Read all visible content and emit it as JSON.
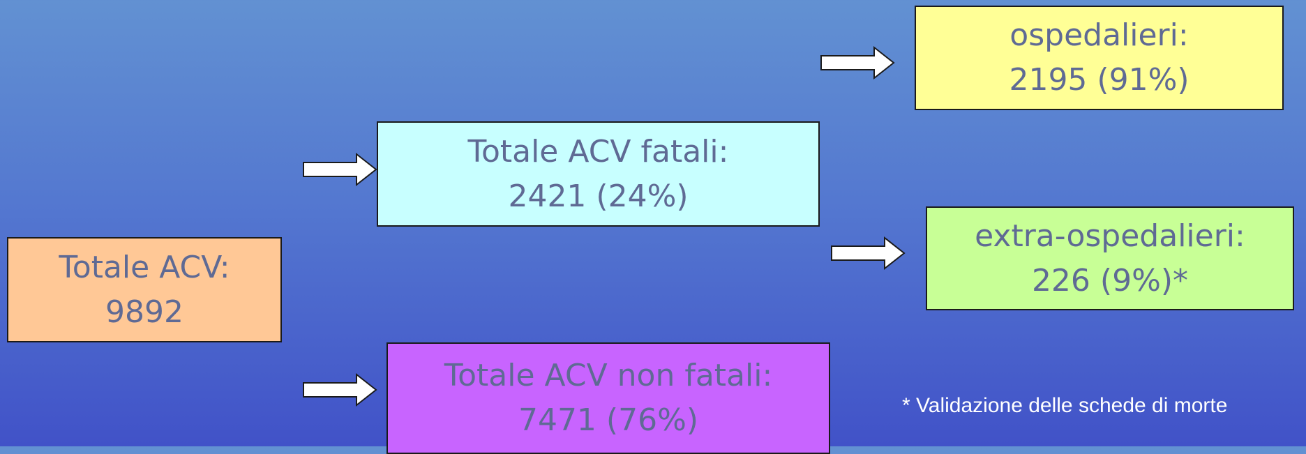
{
  "nodes": [
    {
      "lines": [
        "Totale ACV:",
        "9892"
      ]
    },
    {
      "lines": [
        "Totale ACV fatali:",
        "2421 (24%)"
      ]
    },
    {
      "lines": [
        "Totale ACV non fatali:",
        "7471 (76%)"
      ]
    },
    {
      "lines": [
        "ospedalieri:",
        "2195 (91%)"
      ]
    },
    {
      "lines": [
        "extra-ospedalieri:",
        "226 (9%)*"
      ]
    }
  ],
  "footnote": "* Validazione delle schede di morte"
}
